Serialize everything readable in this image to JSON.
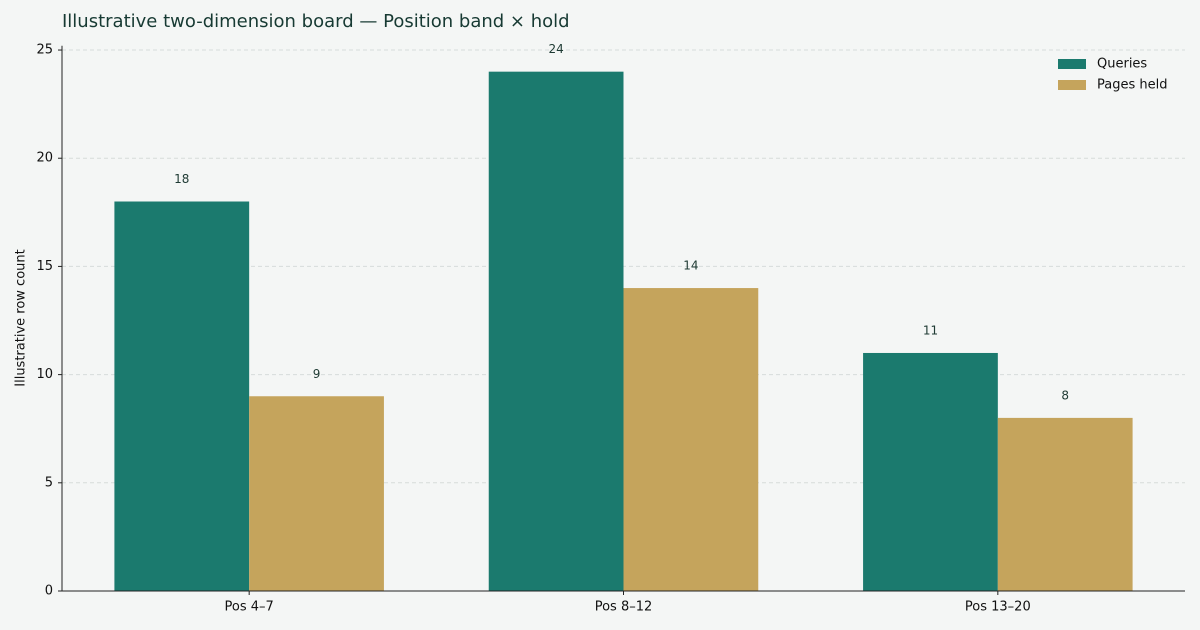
{
  "chart_data": {
    "type": "bar",
    "title": "Illustrative two-dimension board — Position band × hold",
    "y_label": "Illustrative row count",
    "categories": [
      "Pos 4–7",
      "Pos 8–12",
      "Pos 13–20"
    ],
    "series": [
      {
        "name": "Queries",
        "color": "#1b7a6e",
        "values": [
          18,
          24,
          11
        ]
      },
      {
        "name": "Pages held",
        "color": "#c5a45c",
        "values": [
          9,
          14,
          8
        ]
      }
    ],
    "ylim": [
      0,
      25.2
    ],
    "yticks": [
      0,
      5,
      10,
      15,
      20,
      25
    ],
    "grid": true,
    "legend": "upper right"
  }
}
